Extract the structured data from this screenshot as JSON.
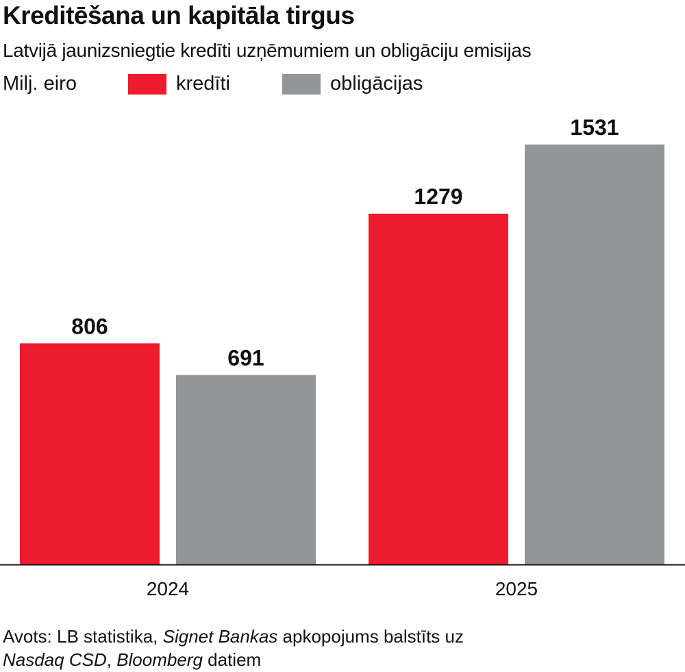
{
  "title": "Kreditēšana un kapitāla tirgus",
  "subtitle": "Latvijā jaunizsniegtie kredīti uzņēmumiem un obligāciju emisijas",
  "unit": "Milj. eiro",
  "colors": {
    "kredīti": "#ed1c2e",
    "obligācijas": "#939598",
    "text": "#111111",
    "axis": "#111111"
  },
  "chart_data": {
    "type": "bar",
    "title": "Kreditēšana un kapitāla tirgus",
    "subtitle": "Latvijā jaunizsniegtie kredīti uzņēmumiem un obligāciju emisijas",
    "ylabel": "Milj. eiro",
    "xlabel": "",
    "categories": [
      "2024",
      "2025"
    ],
    "series": [
      {
        "name": "kredīti",
        "color": "#ed1c2e",
        "values": [
          806,
          1279
        ]
      },
      {
        "name": "obligācijas",
        "color": "#939598",
        "values": [
          691,
          1531
        ]
      }
    ],
    "ylim": [
      0,
      1531
    ],
    "grid": false,
    "legend": "top-left"
  },
  "source": {
    "line1_prefix": "Avots: LB statistika, ",
    "line1_italic": "Signet Bankas",
    "line1_suffix": " apkopojums balstīts uz",
    "line2_italic1": "Nasdaq CSD",
    "line2_sep": ", ",
    "line2_italic2": "Bloomberg",
    "line2_suffix": " datiem"
  }
}
